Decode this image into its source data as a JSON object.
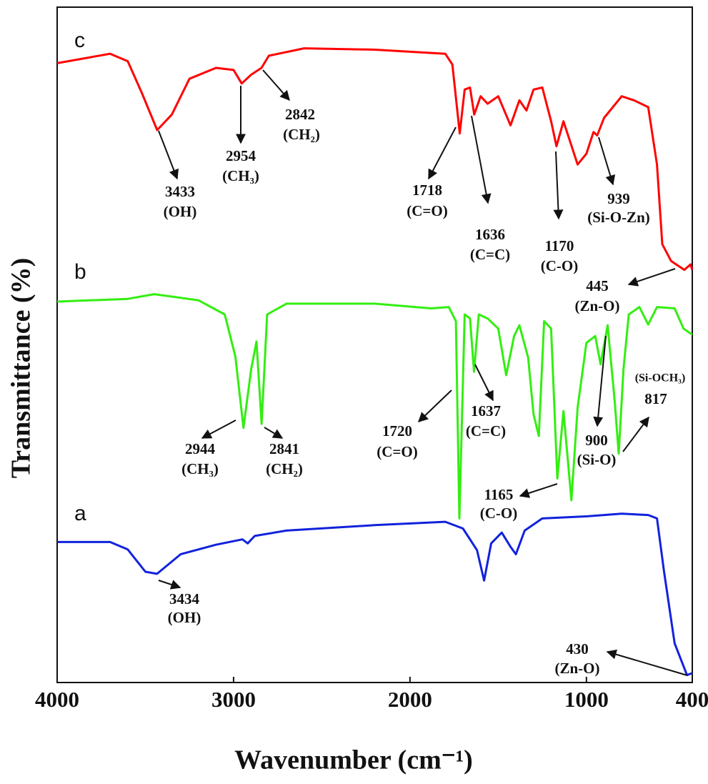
{
  "chart_data": {
    "type": "line",
    "xlabel": "Wavenumber (cm⁻¹)",
    "ylabel": "Transmittance (%)",
    "xlim": [
      4000,
      400
    ],
    "xticks": [
      4000,
      3000,
      2000,
      1000,
      400
    ],
    "ylim": [
      0,
      100
    ],
    "series": [
      {
        "name": "c",
        "color": "#ff0000",
        "x": [
          4000,
          3700,
          3600,
          3520,
          3433,
          3350,
          3250,
          3100,
          3000,
          2954,
          2900,
          2842,
          2800,
          2600,
          2200,
          1800,
          1760,
          1718,
          1690,
          1660,
          1636,
          1600,
          1560,
          1500,
          1430,
          1380,
          1340,
          1300,
          1250,
          1200,
          1170,
          1130,
          1050,
          1000,
          960,
          939,
          900,
          800,
          730,
          650,
          600,
          570,
          520,
          445,
          410,
          400
        ],
        "values": [
          91.7,
          93.1,
          92.0,
          87.3,
          81.8,
          84.1,
          89.4,
          91.0,
          90.7,
          88.7,
          90.0,
          91.0,
          92.8,
          93.9,
          93.7,
          93.1,
          91.5,
          81.3,
          87.8,
          88.1,
          84.1,
          86.8,
          85.7,
          86.8,
          82.5,
          86.2,
          84.7,
          87.8,
          88.1,
          83.1,
          79.4,
          83.1,
          76.7,
          78.3,
          81.5,
          81.0,
          83.6,
          86.8,
          86.2,
          85.2,
          76.7,
          64.9,
          62.4,
          61.1,
          61.9,
          61.1
        ]
      },
      {
        "name": "b",
        "color": "#33ee11",
        "x": [
          4000,
          3600,
          3450,
          3200,
          3050,
          2990,
          2944,
          2900,
          2870,
          2841,
          2810,
          2700,
          2200,
          1880,
          1780,
          1740,
          1720,
          1690,
          1660,
          1637,
          1610,
          1560,
          1500,
          1455,
          1410,
          1380,
          1330,
          1300,
          1270,
          1240,
          1200,
          1165,
          1130,
          1085,
          1050,
          1000,
          950,
          920,
          880,
          840,
          817,
          790,
          760,
          700,
          650,
          600,
          500,
          450,
          400
        ],
        "values": [
          56.4,
          56.8,
          57.5,
          56.6,
          54.5,
          48.3,
          37.7,
          46.4,
          50.5,
          38.3,
          54.5,
          56.1,
          56.1,
          55.4,
          55.6,
          53.5,
          24.3,
          54.5,
          53.9,
          46.0,
          54.5,
          53.9,
          52.4,
          45.5,
          51.3,
          52.9,
          48.1,
          39.7,
          36.5,
          53.5,
          52.4,
          30.2,
          40.2,
          27.0,
          40.7,
          50.3,
          51.3,
          47.1,
          52.9,
          41.8,
          33.9,
          46.4,
          54.5,
          55.6,
          53.0,
          55.6,
          55.4,
          52.4,
          51.5
        ]
      },
      {
        "name": "a",
        "color": "#1122dd",
        "x": [
          4000,
          3700,
          3600,
          3500,
          3434,
          3300,
          3100,
          2950,
          2920,
          2880,
          2700,
          2200,
          1800,
          1700,
          1620,
          1580,
          1540,
          1480,
          1430,
          1400,
          1350,
          1250,
          1000,
          800,
          650,
          600,
          560,
          500,
          430,
          400
        ],
        "values": [
          20.8,
          20.8,
          19.7,
          16.4,
          16.1,
          19.0,
          20.4,
          21.2,
          20.6,
          21.7,
          22.5,
          23.3,
          23.8,
          22.8,
          19.6,
          15.1,
          20.6,
          22.2,
          20.1,
          19.0,
          22.5,
          24.3,
          24.6,
          25.0,
          24.8,
          24.3,
          16.4,
          5.8,
          1.1,
          1.4
        ]
      }
    ],
    "annotations": [
      {
        "text": "3433",
        "group": "(OH)"
      },
      {
        "text": "2954",
        "group": "(CH₃)"
      },
      {
        "text": "2842",
        "group": "(CH₂)"
      },
      {
        "text": "1718",
        "group": "(C=O)"
      },
      {
        "text": "1636",
        "group": "(C=C)"
      },
      {
        "text": "1170",
        "group": "(C-O)"
      },
      {
        "text": "939",
        "group": "(Si-O-Zn)"
      },
      {
        "text": "445",
        "group": "(Zn-O)"
      },
      {
        "text": "2944",
        "group": "(CH₃)"
      },
      {
        "text": "2841",
        "group": "(CH₂)"
      },
      {
        "text": "1720",
        "group": "(C=O)"
      },
      {
        "text": "1637",
        "group": "(C=C)"
      },
      {
        "text": "1165",
        "group": "(C-O)"
      },
      {
        "text": "900",
        "group": "(Si-O)"
      },
      {
        "text": "817",
        "group": "(Si-OCH₃)"
      },
      {
        "text": "3434",
        "group": "(OH)"
      },
      {
        "text": "430",
        "group": "(Zn-O)"
      }
    ]
  }
}
